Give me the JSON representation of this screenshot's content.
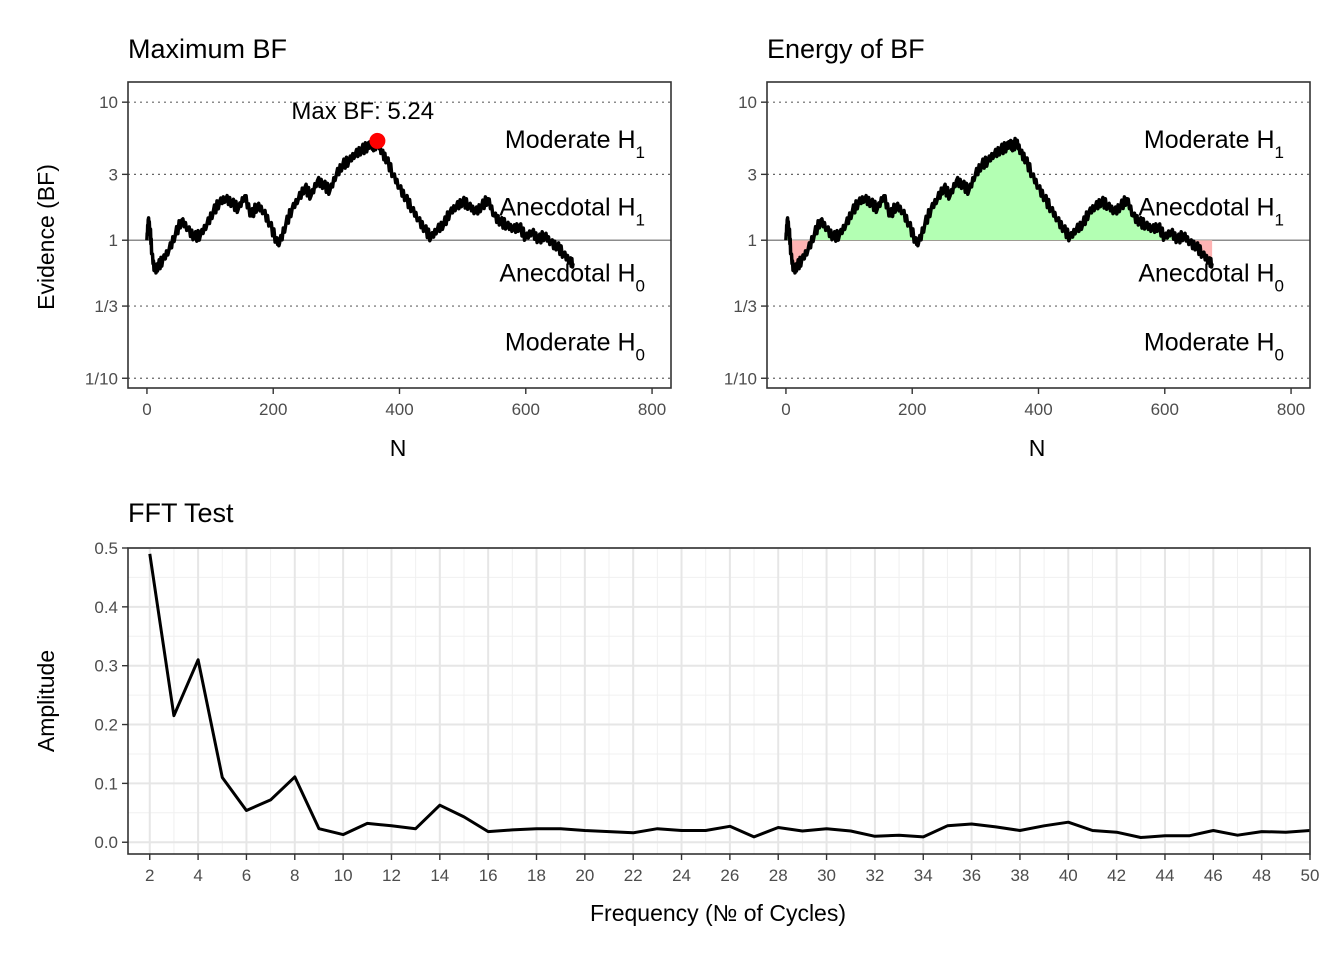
{
  "chart_data": [
    {
      "type": "line",
      "title": "Maximum BF",
      "xlabel": "N",
      "ylabel": "Evidence (BF)",
      "xlim": [
        -30,
        830
      ],
      "xticks": [
        0,
        200,
        400,
        600,
        800
      ],
      "ylim": [
        0.085,
        14
      ],
      "yscale": "log",
      "yticks": [
        0.1,
        0.333333,
        1,
        3,
        10
      ],
      "ytick_labels": [
        "1/10",
        "1/3",
        "1",
        "3",
        "10"
      ],
      "grid": "dotted lines at 1/10, 1/3, 3, 10; solid grey line at 1",
      "bands": [
        {
          "label": "Moderate H",
          "sub": "1",
          "y": 5.4
        },
        {
          "label": "Anecdotal H",
          "sub": "1",
          "y": 1.75
        },
        {
          "label": "Anecdotal H",
          "sub": "0",
          "y": 0.585
        },
        {
          "label": "Moderate H",
          "sub": "0",
          "y": 0.185
        }
      ],
      "annotation": "Max BF: 5.24",
      "max_point": {
        "x": 365,
        "y": 5.24,
        "color": "#ff0000"
      },
      "series": [
        {
          "x": [
            0,
            2,
            5,
            8,
            12,
            18,
            25,
            35,
            45,
            55,
            65,
            75,
            85,
            95,
            105,
            115,
            125,
            135,
            145,
            155,
            165,
            175,
            185,
            195,
            205,
            210,
            220,
            230,
            240,
            250,
            260,
            270,
            280,
            290,
            300,
            310,
            320,
            330,
            340,
            350,
            355,
            360,
            365,
            372,
            380,
            390,
            400,
            410,
            420,
            430,
            440,
            450,
            460,
            470,
            480,
            490,
            500,
            510,
            520,
            530,
            540,
            550,
            560,
            570,
            580,
            590,
            600,
            610,
            620,
            630,
            640,
            650,
            660,
            670,
            675
          ],
          "y": [
            1.0,
            1.4,
            1.2,
            0.8,
            0.6,
            0.65,
            0.72,
            0.85,
            1.1,
            1.4,
            1.2,
            1.05,
            1.1,
            1.3,
            1.6,
            1.9,
            2.0,
            1.85,
            1.7,
            2.1,
            1.5,
            1.8,
            1.6,
            1.3,
            1.0,
            0.95,
            1.3,
            1.7,
            2.0,
            2.4,
            2.1,
            2.7,
            2.5,
            2.3,
            3.0,
            3.5,
            3.8,
            4.2,
            4.5,
            4.8,
            5.0,
            4.7,
            5.24,
            4.3,
            3.8,
            3.0,
            2.4,
            2.0,
            1.7,
            1.4,
            1.2,
            1.05,
            1.2,
            1.3,
            1.6,
            1.75,
            1.9,
            1.8,
            1.6,
            1.75,
            2.0,
            1.5,
            1.35,
            1.3,
            1.2,
            1.25,
            1.05,
            1.15,
            1.0,
            1.1,
            0.95,
            0.9,
            0.8,
            0.7,
            0.68
          ]
        }
      ]
    },
    {
      "type": "area",
      "title": "Energy of BF",
      "xlabel": "N",
      "ylabel": "",
      "xlim": [
        -30,
        830
      ],
      "xticks": [
        0,
        200,
        400,
        600,
        800
      ],
      "ylim": [
        0.085,
        14
      ],
      "yscale": "log",
      "yticks": [
        0.1,
        0.333333,
        1,
        3,
        10
      ],
      "ytick_labels": [
        "1/10",
        "1/3",
        "1",
        "3",
        "10"
      ],
      "grid": "dotted lines at 1/10, 1/3, 3, 10; solid grey line at 1",
      "fill_above_1": "#b3ffb3",
      "fill_below_1": "#ffb3b3",
      "bands": [
        {
          "label": "Moderate H",
          "sub": "1",
          "y": 5.4
        },
        {
          "label": "Anecdotal H",
          "sub": "1",
          "y": 1.75
        },
        {
          "label": "Anecdotal H",
          "sub": "0",
          "y": 0.585
        },
        {
          "label": "Moderate H",
          "sub": "0",
          "y": 0.185
        }
      ],
      "series": [
        {
          "x": [
            0,
            2,
            5,
            8,
            12,
            18,
            25,
            35,
            45,
            55,
            65,
            75,
            85,
            95,
            105,
            115,
            125,
            135,
            145,
            155,
            165,
            175,
            185,
            195,
            205,
            210,
            220,
            230,
            240,
            250,
            260,
            270,
            280,
            290,
            300,
            310,
            320,
            330,
            340,
            350,
            355,
            360,
            365,
            372,
            380,
            390,
            400,
            410,
            420,
            430,
            440,
            450,
            460,
            470,
            480,
            490,
            500,
            510,
            520,
            530,
            540,
            550,
            560,
            570,
            580,
            590,
            600,
            610,
            620,
            630,
            640,
            650,
            660,
            670,
            675
          ],
          "y": [
            1.0,
            1.4,
            1.2,
            0.8,
            0.6,
            0.65,
            0.72,
            0.85,
            1.1,
            1.4,
            1.2,
            1.05,
            1.1,
            1.3,
            1.6,
            1.9,
            2.0,
            1.85,
            1.7,
            2.1,
            1.5,
            1.8,
            1.6,
            1.3,
            1.0,
            0.95,
            1.3,
            1.7,
            2.0,
            2.4,
            2.1,
            2.7,
            2.5,
            2.3,
            3.0,
            3.5,
            3.8,
            4.2,
            4.5,
            4.8,
            5.0,
            4.7,
            5.24,
            4.3,
            3.8,
            3.0,
            2.4,
            2.0,
            1.7,
            1.4,
            1.2,
            1.05,
            1.2,
            1.3,
            1.6,
            1.75,
            1.9,
            1.8,
            1.6,
            1.75,
            2.0,
            1.5,
            1.35,
            1.3,
            1.2,
            1.25,
            1.05,
            1.15,
            1.0,
            1.1,
            0.95,
            0.9,
            0.8,
            0.7,
            0.68
          ]
        }
      ]
    },
    {
      "type": "line",
      "title": "FFT Test",
      "xlabel": "Frequency (№ of Cycles)",
      "ylabel": "Amplitude",
      "xlim": [
        1.1,
        50
      ],
      "xticks": [
        2,
        4,
        6,
        8,
        10,
        12,
        14,
        16,
        18,
        20,
        22,
        24,
        26,
        28,
        30,
        32,
        34,
        36,
        38,
        40,
        42,
        44,
        46,
        48,
        50
      ],
      "ylim": [
        -0.02,
        0.5
      ],
      "yticks": [
        0.0,
        0.1,
        0.2,
        0.3,
        0.4,
        0.5
      ],
      "ytick_labels": [
        "0.0",
        "0.1",
        "0.2",
        "0.3",
        "0.4",
        "0.5"
      ],
      "grid": true,
      "series": [
        {
          "x": [
            2,
            3,
            4,
            5,
            6,
            7,
            8,
            9,
            10,
            11,
            12,
            13,
            14,
            15,
            16,
            17,
            18,
            19,
            20,
            21,
            22,
            23,
            24,
            25,
            26,
            27,
            28,
            29,
            30,
            31,
            32,
            33,
            34,
            35,
            36,
            37,
            38,
            39,
            40,
            41,
            42,
            43,
            44,
            45,
            46,
            47,
            48,
            49,
            50
          ],
          "y": [
            0.49,
            0.215,
            0.31,
            0.11,
            0.054,
            0.072,
            0.111,
            0.023,
            0.013,
            0.032,
            0.028,
            0.023,
            0.063,
            0.043,
            0.018,
            0.021,
            0.023,
            0.023,
            0.02,
            0.018,
            0.016,
            0.023,
            0.02,
            0.02,
            0.027,
            0.009,
            0.025,
            0.019,
            0.023,
            0.019,
            0.01,
            0.012,
            0.009,
            0.028,
            0.031,
            0.026,
            0.02,
            0.028,
            0.034,
            0.02,
            0.017,
            0.008,
            0.011,
            0.011,
            0.02,
            0.012,
            0.018,
            0.017,
            0.02
          ]
        }
      ]
    }
  ]
}
